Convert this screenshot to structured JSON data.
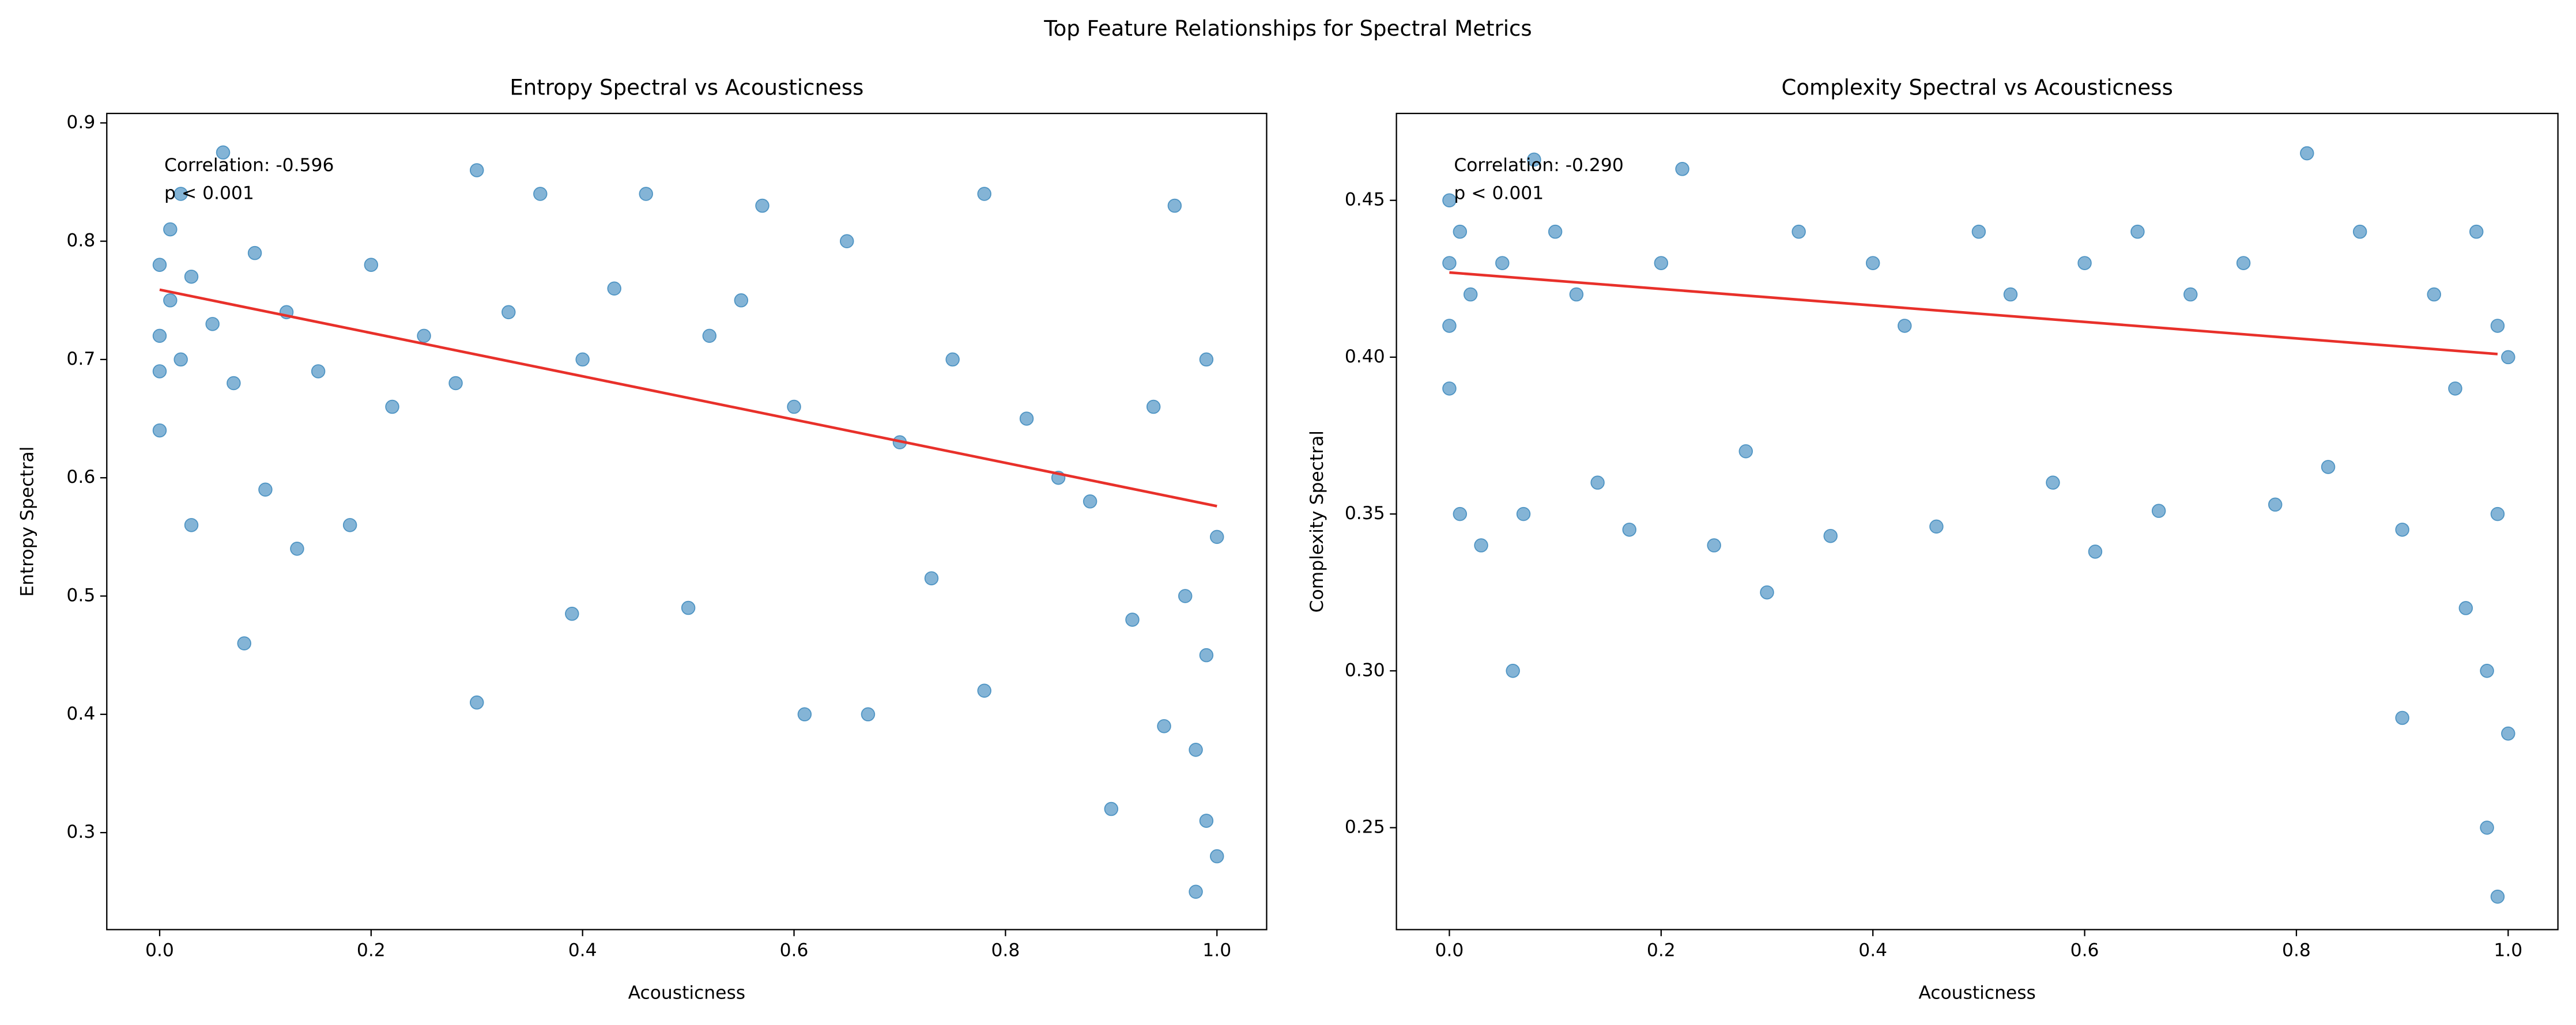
{
  "suptitle": "Top Feature Relationships for Spectral Metrics",
  "chart_data": [
    {
      "type": "scatter",
      "title": "Entropy Spectral vs Acousticness",
      "xlabel": "Acousticness",
      "ylabel": "Entropy Spectral",
      "color": "#1f77b4",
      "fit_color": "#e8302a",
      "xlim": [
        -0.05,
        1.047
      ],
      "ylim": [
        0.218,
        0.908
      ],
      "xticks": [
        {
          "value": 0,
          "label": "0.0"
        },
        0.2,
        0.4,
        0.6,
        0.8,
        {
          "value": 1,
          "label": "1.0"
        }
      ],
      "yticks": [
        0.3,
        0.4,
        0.5,
        0.6,
        0.7,
        0.8,
        0.9
      ],
      "annotations": [
        "Correlation: -0.596",
        "p < 0.001"
      ],
      "x": [
        0.0,
        0.0,
        0.0,
        0.01,
        0.01,
        0.0,
        0.02,
        0.02,
        0.03,
        0.03,
        0.05,
        0.06,
        0.07,
        0.08,
        0.09,
        0.1,
        0.12,
        0.13,
        0.15,
        0.18,
        0.2,
        0.22,
        0.25,
        0.28,
        0.3,
        0.3,
        0.33,
        0.36,
        0.39,
        0.4,
        0.43,
        0.46,
        0.5,
        0.52,
        0.55,
        0.57,
        0.6,
        0.61,
        0.65,
        0.67,
        0.7,
        0.73,
        0.75,
        0.78,
        0.78,
        0.82,
        0.85,
        0.88,
        0.9,
        0.92,
        0.94,
        0.95,
        0.96,
        0.97,
        0.98,
        0.98,
        0.99,
        0.99,
        0.99,
        1.0,
        1.0
      ],
      "y": [
        0.72,
        0.78,
        0.69,
        0.75,
        0.81,
        0.64,
        0.7,
        0.84,
        0.56,
        0.77,
        0.73,
        0.875,
        0.68,
        0.46,
        0.79,
        0.59,
        0.74,
        0.54,
        0.69,
        0.56,
        0.78,
        0.66,
        0.72,
        0.68,
        0.86,
        0.41,
        0.74,
        0.84,
        0.485,
        0.7,
        0.76,
        0.84,
        0.49,
        0.72,
        0.75,
        0.83,
        0.66,
        0.4,
        0.8,
        0.4,
        0.63,
        0.515,
        0.7,
        0.84,
        0.42,
        0.65,
        0.6,
        0.58,
        0.32,
        0.48,
        0.66,
        0.39,
        0.83,
        0.5,
        0.37,
        0.25,
        0.31,
        0.45,
        0.7,
        0.28,
        0.55
      ],
      "fit": {
        "x": [
          0,
          1
        ],
        "y": [
          0.759,
          0.576
        ]
      }
    },
    {
      "type": "scatter",
      "title": "Complexity Spectral vs Acousticness",
      "xlabel": "Acousticness",
      "ylabel": "Complexity Spectral",
      "color": "#1f77b4",
      "fit_color": "#e8302a",
      "xlim": [
        -0.05,
        1.047
      ],
      "ylim": [
        0.2175,
        0.4777
      ],
      "xticks": [
        {
          "value": 0,
          "label": "0.0"
        },
        0.2,
        0.4,
        0.6,
        0.8,
        {
          "value": 1,
          "label": "1.0"
        }
      ],
      "yticks": [
        0.25,
        {
          "value": 0.3,
          "label": "0.30"
        },
        0.35,
        {
          "value": 0.4,
          "label": "0.40"
        },
        0.45
      ],
      "annotations": [
        "Correlation: -0.290",
        "p < 0.001"
      ],
      "x": [
        0.0,
        0.0,
        0.0,
        0.0,
        0.01,
        0.01,
        0.02,
        0.03,
        0.05,
        0.06,
        0.07,
        0.08,
        0.1,
        0.12,
        0.14,
        0.17,
        0.2,
        0.22,
        0.25,
        0.28,
        0.3,
        0.33,
        0.36,
        0.4,
        0.43,
        0.46,
        0.5,
        0.53,
        0.57,
        0.6,
        0.61,
        0.65,
        0.67,
        0.7,
        0.75,
        0.78,
        0.81,
        0.83,
        0.86,
        0.9,
        0.9,
        0.93,
        0.95,
        0.96,
        0.97,
        0.98,
        0.98,
        0.99,
        0.99,
        0.99,
        1.0,
        1.0
      ],
      "y": [
        0.43,
        0.45,
        0.41,
        0.39,
        0.35,
        0.44,
        0.42,
        0.34,
        0.43,
        0.3,
        0.35,
        0.463,
        0.44,
        0.42,
        0.36,
        0.345,
        0.43,
        0.46,
        0.34,
        0.37,
        0.325,
        0.44,
        0.343,
        0.43,
        0.41,
        0.346,
        0.44,
        0.42,
        0.36,
        0.43,
        0.338,
        0.44,
        0.351,
        0.42,
        0.43,
        0.353,
        0.465,
        0.365,
        0.44,
        0.285,
        0.345,
        0.42,
        0.39,
        0.32,
        0.44,
        0.3,
        0.25,
        0.228,
        0.35,
        0.41,
        0.28,
        0.4
      ],
      "fit": {
        "x": [
          0,
          0.99
        ],
        "y": [
          0.427,
          0.401
        ]
      }
    }
  ]
}
